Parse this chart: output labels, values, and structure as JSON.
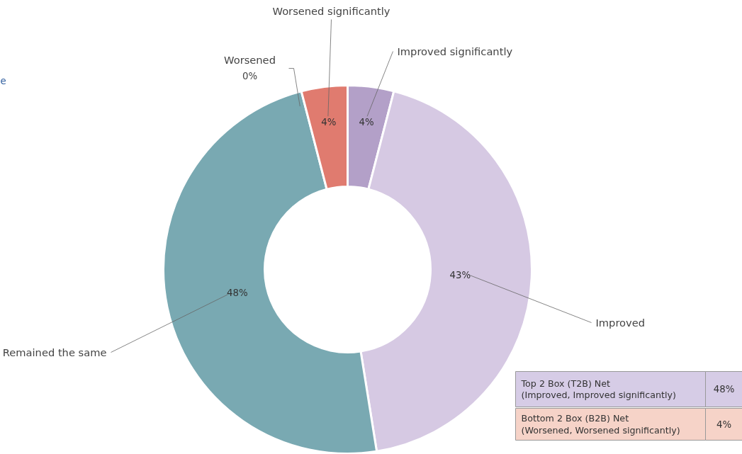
{
  "chart_data": {
    "type": "donut",
    "categories": [
      "Improved significantly",
      "Improved",
      "Remained the same",
      "Worsened",
      "Worsened significantly"
    ],
    "values": [
      4,
      43,
      48,
      0,
      4
    ],
    "colors": [
      "#b3a0c8",
      "#d6c9e3",
      "#79a9b2",
      "#e8a090",
      "#e07b6f"
    ],
    "value_labels": [
      "4%",
      "43%",
      "48%",
      "0%",
      "4%"
    ],
    "annotations": [
      "e",
      "Top 2 Box (T2B) Net\n(Improved, Improved significantly)",
      "48%",
      "Bottom 2 Box (B2B) Net\n(Worsened, Worsened significantly)",
      "4%"
    ]
  }
}
